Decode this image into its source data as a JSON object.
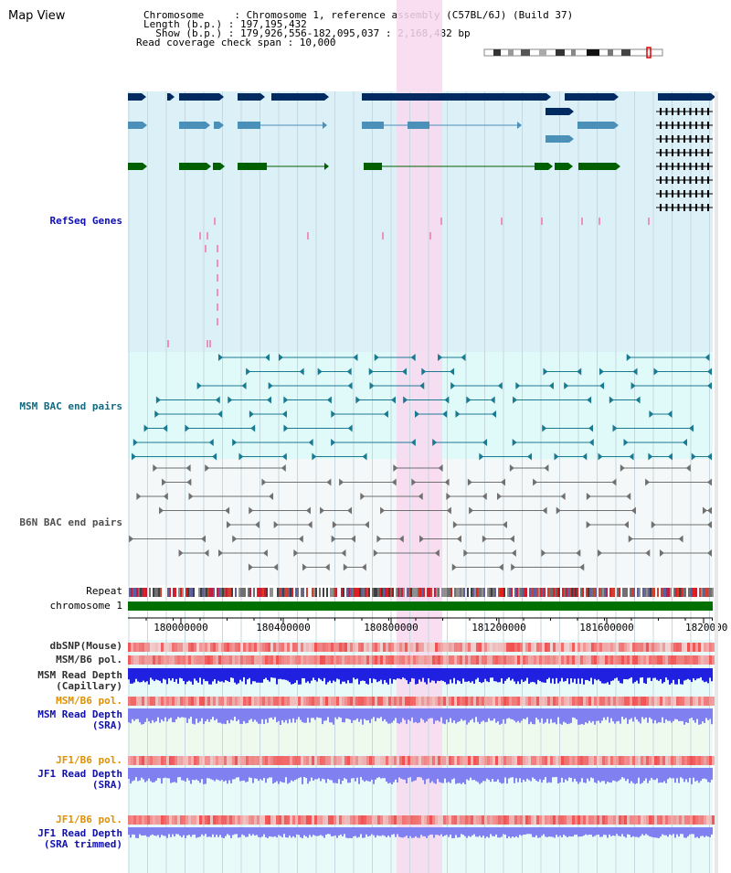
{
  "title": "Map View",
  "header": {
    "line1": "Chromosome     : Chromosome 1, reference assembly (C57BL/6J) (Build 37)",
    "line2": "Length (b.p.) : 197,195,432",
    "line3": "  Show (b.p.) : 179,926,556-182,095,037 : 2,168,482 bp",
    "line4": "Read coverage check span : 10,000"
  },
  "tracks": {
    "refseq": "RefSeq Genes",
    "msm_bac": "MSM BAC end pairs",
    "b6n_bac": "B6N BAC end pairs",
    "repeat": "Repeat",
    "chromosome": "chromosome 1",
    "dbsnp": "dbSNP(Mouse)",
    "msm_pol": "MSM/B6 pol.",
    "msm_depth_cap_1": "MSM Read Depth",
    "msm_depth_cap_2": "(Capillary)",
    "msm_pol_2": "MSM/B6 pol.",
    "msm_depth_sra_1": "MSM Read Depth",
    "msm_depth_sra_2": "(SRA)",
    "jf1_pol": "JF1/B6 pol.",
    "jf1_depth_1": "JF1 Read Depth",
    "jf1_depth_2": "(SRA)",
    "jf1_pol_2": "JF1/B6 pol.",
    "jf1_trim_1": "JF1 Read Depth",
    "jf1_trim_2": "(SRA trimmed)"
  },
  "axis": {
    "ticks": [
      "180000000",
      "180400000",
      "180800000",
      "181200000",
      "181600000",
      "1820000"
    ]
  },
  "colors": {
    "refseq_bg": "#dcf0f8",
    "bac_bg": "#e0fafa",
    "b6n_bg": "#f4f8f8",
    "highlight": "#f8d8f0",
    "gene_dark": "#002a60",
    "gene_mid": "#4a90b8",
    "gene_green": "#006000",
    "chrom": "#007000",
    "depth_blue": "#2020e0",
    "depth_light": "#8080f0"
  }
}
